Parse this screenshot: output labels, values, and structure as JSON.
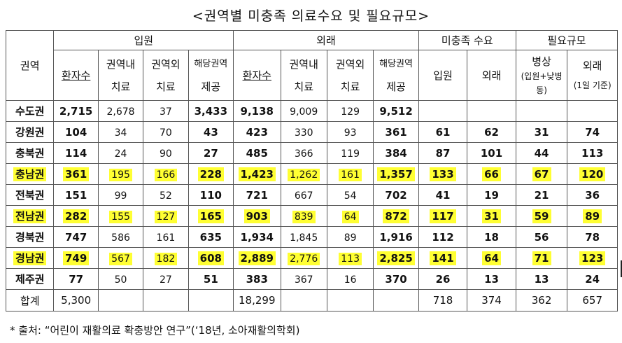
{
  "title": "<권역별 미충족 의료수요 및 필요규모>",
  "header": {
    "region": "권역",
    "inpatient": "입원",
    "outpatient": "외래",
    "unmet": "미충족 수요",
    "required": "필요규모",
    "patients": "환자수",
    "in_region_1": "권역내",
    "in_region_2": "치료",
    "out_region_1": "권역외",
    "out_region_2": "치료",
    "provide_1": "해당권역",
    "provide_2": "제공",
    "unmet_in": "입원",
    "unmet_out": "외래",
    "beds_1": "병상",
    "beds_2": "(입원+낮병",
    "beds_3": "동)",
    "req_out_1": "외래",
    "req_out_2": "(1일 기준)"
  },
  "rows": [
    {
      "region": "수도권",
      "in_patients": "2,715",
      "in_in": "2,678",
      "in_out": "37",
      "in_prov": "3,433",
      "out_patients": "9,138",
      "out_in": "9,009",
      "out_out": "129",
      "out_prov": "9,512",
      "unmet_in": "",
      "unmet_out": "",
      "beds": "",
      "req_out": "",
      "highlight": false
    },
    {
      "region": "강원권",
      "in_patients": "104",
      "in_in": "34",
      "in_out": "70",
      "in_prov": "43",
      "out_patients": "423",
      "out_in": "330",
      "out_out": "93",
      "out_prov": "361",
      "unmet_in": "61",
      "unmet_out": "62",
      "beds": "31",
      "req_out": "74",
      "highlight": false
    },
    {
      "region": "충북권",
      "in_patients": "114",
      "in_in": "24",
      "in_out": "90",
      "in_prov": "27",
      "out_patients": "485",
      "out_in": "366",
      "out_out": "119",
      "out_prov": "384",
      "unmet_in": "87",
      "unmet_out": "101",
      "beds": "44",
      "req_out": "113",
      "highlight": false
    },
    {
      "region": "충남권",
      "in_patients": "361",
      "in_in": "195",
      "in_out": "166",
      "in_prov": "228",
      "out_patients": "1,423",
      "out_in": "1,262",
      "out_out": "161",
      "out_prov": "1,357",
      "unmet_in": "133",
      "unmet_out": "66",
      "beds": "67",
      "req_out": "120",
      "highlight": true
    },
    {
      "region": "전북권",
      "in_patients": "151",
      "in_in": "99",
      "in_out": "52",
      "in_prov": "110",
      "out_patients": "721",
      "out_in": "667",
      "out_out": "54",
      "out_prov": "702",
      "unmet_in": "41",
      "unmet_out": "19",
      "beds": "21",
      "req_out": "36",
      "highlight": false
    },
    {
      "region": "전남권",
      "in_patients": "282",
      "in_in": "155",
      "in_out": "127",
      "in_prov": "165",
      "out_patients": "903",
      "out_in": "839",
      "out_out": "64",
      "out_prov": "872",
      "unmet_in": "117",
      "unmet_out": "31",
      "beds": "59",
      "req_out": "89",
      "highlight": true
    },
    {
      "region": "경북권",
      "in_patients": "747",
      "in_in": "586",
      "in_out": "161",
      "in_prov": "635",
      "out_patients": "1,934",
      "out_in": "1,845",
      "out_out": "89",
      "out_prov": "1,916",
      "unmet_in": "112",
      "unmet_out": "18",
      "beds": "56",
      "req_out": "78",
      "highlight": false
    },
    {
      "region": "경남권",
      "in_patients": "749",
      "in_in": "567",
      "in_out": "182",
      "in_prov": "608",
      "out_patients": "2,889",
      "out_in": "2,776",
      "out_out": "113",
      "out_prov": "2,825",
      "unmet_in": "141",
      "unmet_out": "64",
      "beds": "71",
      "req_out": "123",
      "highlight": true
    },
    {
      "region": "제주권",
      "in_patients": "77",
      "in_in": "50",
      "in_out": "27",
      "in_prov": "51",
      "out_patients": "383",
      "out_in": "367",
      "out_out": "16",
      "out_prov": "370",
      "unmet_in": "26",
      "unmet_out": "13",
      "beds": "13",
      "req_out": "24",
      "highlight": false
    }
  ],
  "total": {
    "label": "합계",
    "in_patients": "5,300",
    "out_patients": "18,299",
    "unmet_in": "718",
    "unmet_out": "374",
    "beds": "362",
    "req_out": "657"
  },
  "footnote": "* 출처: “어린이 재활의료 확충방안 연구”(‘18년, 소아재활의학회)",
  "colors": {
    "highlight": "#ffff33"
  }
}
